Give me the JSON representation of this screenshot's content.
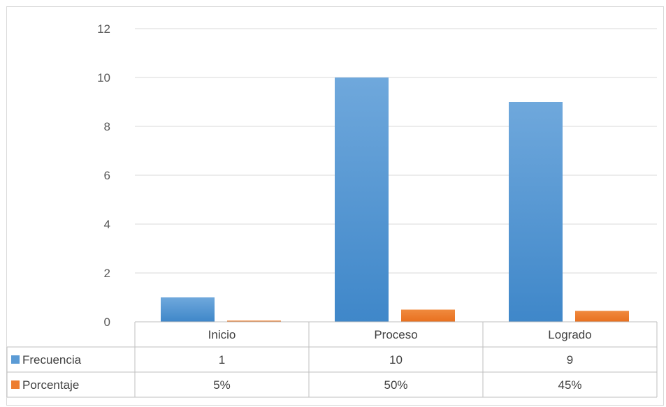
{
  "chart_data": {
    "type": "bar",
    "categories": [
      "Inicio",
      "Proceso",
      "Logrado"
    ],
    "series": [
      {
        "name": "Frecuencia",
        "values": [
          1,
          10,
          9
        ],
        "color": "#5b9bd5",
        "table_labels": [
          "1",
          "10",
          "9"
        ]
      },
      {
        "name": "Porcentaje",
        "values": [
          0.05,
          0.5,
          0.45
        ],
        "color": "#ed7d31",
        "table_labels": [
          "5%",
          "50%",
          "45%"
        ]
      }
    ],
    "ylim": [
      0,
      12
    ],
    "yticks": [
      "0",
      "2",
      "4",
      "6",
      "8",
      "10",
      "12"
    ],
    "grid": true,
    "legend": "data-table"
  }
}
